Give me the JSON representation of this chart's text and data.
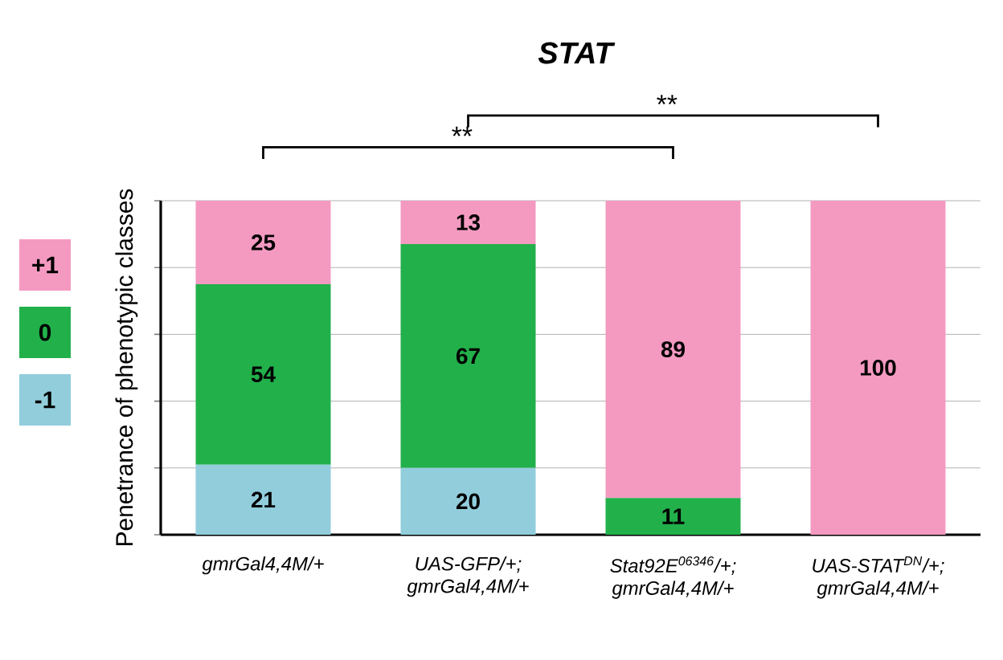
{
  "chart_data": {
    "type": "bar",
    "stacked": true,
    "title": "STAT",
    "ylabel": "Penetrance of phenotypic classes",
    "categories": [
      "gmrGal4,4M/+",
      "UAS-GFP/+; gmrGal4,4M/+",
      "Stat92E$^{06346}$/+; gmrGal4,4M/+",
      "UAS-STAT$^{DN}$/+; gmrGal4,4M/+"
    ],
    "series": [
      {
        "name": "-1",
        "color": "#92cddc",
        "values": [
          21,
          20,
          0,
          0
        ],
        "value_labels": [
          "21",
          "20",
          null,
          null
        ]
      },
      {
        "name": "0",
        "color": "#22b04b",
        "values": [
          54,
          67,
          11,
          0
        ],
        "value_labels": [
          "54",
          "67",
          "11",
          null
        ]
      },
      {
        "name": "+1",
        "color": "#f49ac1",
        "values": [
          25,
          13,
          89,
          100
        ],
        "value_labels": [
          "25",
          "13",
          "89",
          "100"
        ]
      }
    ],
    "ylim": [
      0,
      100
    ],
    "yticks": [
      {
        "value": 0,
        "label": null
      },
      {
        "value": 20,
        "label": null
      },
      {
        "value": 40,
        "label": null
      },
      {
        "value": 60,
        "label": null
      },
      {
        "value": 80,
        "label": null
      },
      {
        "value": 100,
        "label": null
      }
    ],
    "tick_labels": "x",
    "grid": "y",
    "legend": "left",
    "annotations": [
      "**",
      "**"
    ]
  }
}
